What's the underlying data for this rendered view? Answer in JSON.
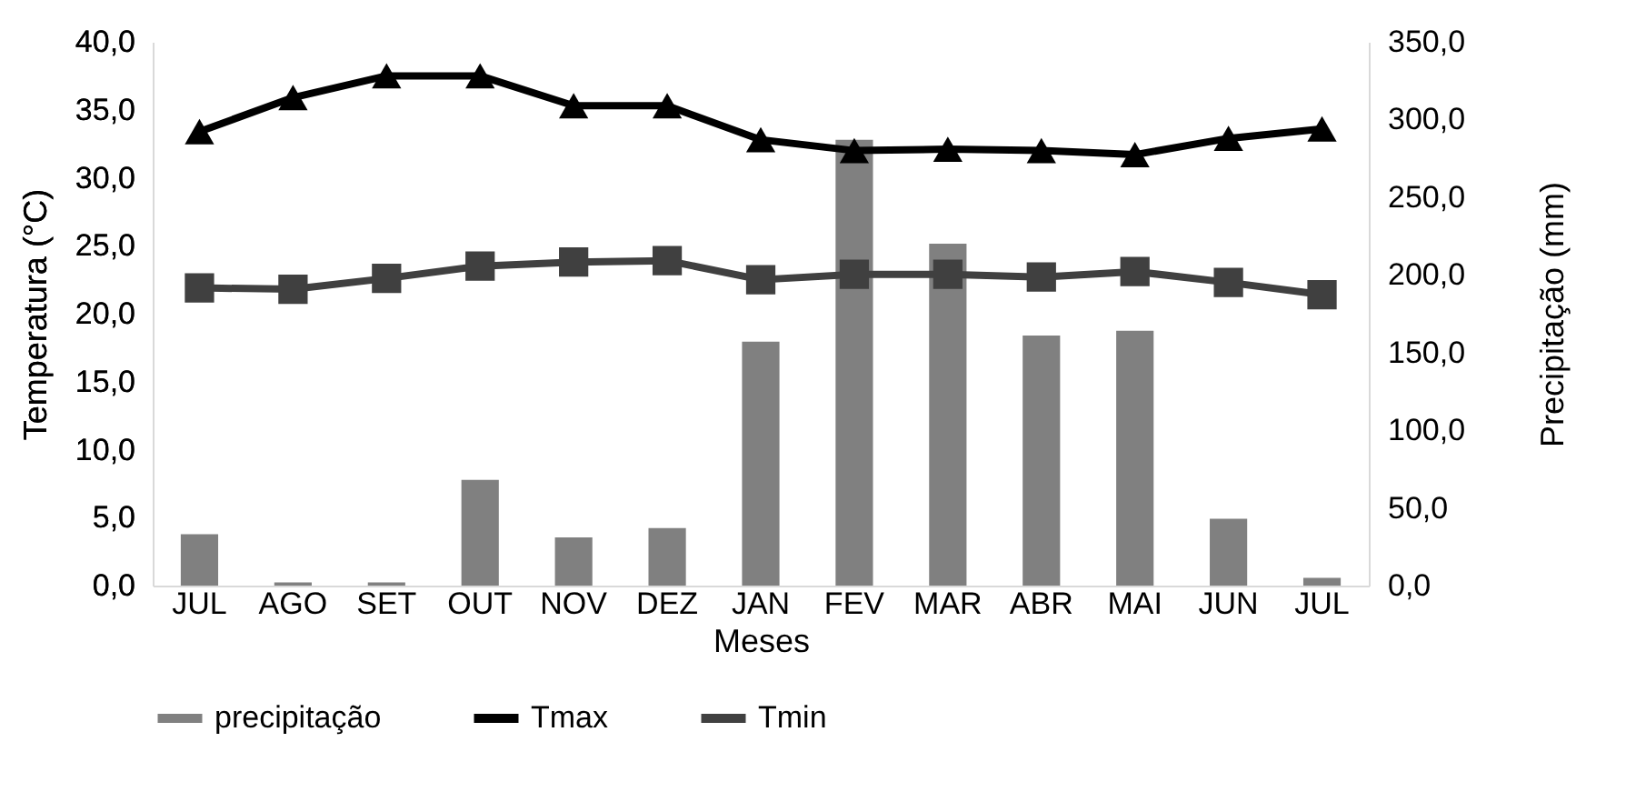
{
  "chart_data": {
    "type": "bar",
    "xlabel": "Meses",
    "ylabel": "Temperatura (°C)",
    "y2label": "Precipitação (mm)",
    "categories": [
      "JUL",
      "AGO",
      "SET",
      "OUT",
      "NOV",
      "DEZ",
      "JAN",
      "FEV",
      "MAR",
      "ABR",
      "MAI",
      "JUN",
      "JUL"
    ],
    "series": [
      {
        "name": "precipitação",
        "axis": "y2",
        "color": "#808080",
        "values": [
          33,
          2,
          2,
          68,
          31,
          37,
          157,
          287,
          220,
          161,
          164,
          43,
          5
        ]
      },
      {
        "name": "Tmax",
        "type": "line",
        "marker": "triangle",
        "color": "#000000",
        "values": [
          33.4,
          35.9,
          37.5,
          37.5,
          35.3,
          35.3,
          32.8,
          32.0,
          32.1,
          32.0,
          31.7,
          32.9,
          33.6
        ]
      },
      {
        "name": "Tmin",
        "type": "line",
        "marker": "square",
        "color": "#404040",
        "values": [
          21.9,
          21.8,
          22.6,
          23.5,
          23.8,
          23.9,
          22.5,
          22.9,
          22.9,
          22.7,
          23.1,
          22.3,
          21.4
        ]
      }
    ],
    "ylim": [
      0,
      40
    ],
    "yticks": [
      {
        "value": 0,
        "label": "0,0"
      },
      {
        "value": 5,
        "label": "5,0"
      },
      {
        "value": 10,
        "label": "10,0"
      },
      {
        "value": 15,
        "label": "15,0"
      },
      {
        "value": 20,
        "label": "20,0"
      },
      {
        "value": 25,
        "label": "25,0"
      },
      {
        "value": 30,
        "label": "30,0"
      },
      {
        "value": 35,
        "label": "35,0"
      },
      {
        "value": 40,
        "label": "40,0"
      }
    ],
    "y2lim": [
      0,
      350
    ],
    "y2ticks": [
      {
        "value": 0,
        "label": "0,0"
      },
      {
        "value": 50,
        "label": "50,0"
      },
      {
        "value": 100,
        "label": "100,0"
      },
      {
        "value": 150,
        "label": "150,0"
      },
      {
        "value": 200,
        "label": "200,0"
      },
      {
        "value": 250,
        "label": "250,0"
      },
      {
        "value": 300,
        "label": "300,0"
      },
      {
        "value": 350,
        "label": "350,0"
      }
    ],
    "grid": false,
    "legend": "bottom"
  }
}
